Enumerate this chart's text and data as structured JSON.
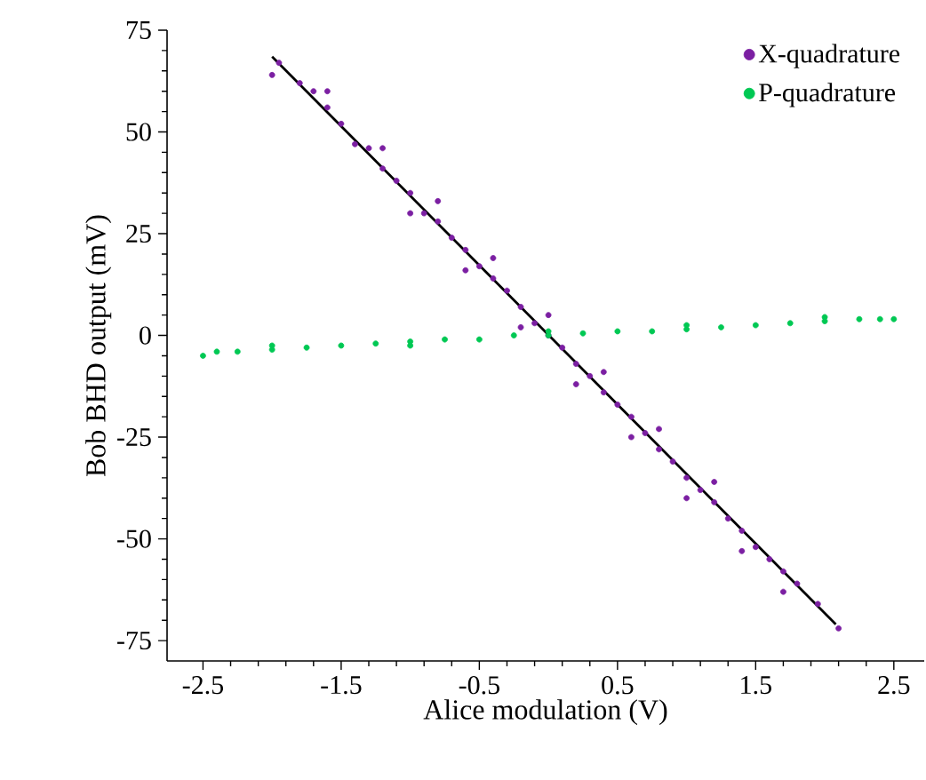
{
  "chart_data": {
    "type": "scatter",
    "xlabel": "Alice modulation (V)",
    "ylabel": "Bob BHD output (mV)",
    "xlim": [
      -2.76,
      2.72
    ],
    "ylim": [
      -80,
      75
    ],
    "xticks": [
      -2.5,
      -1.5,
      -0.5,
      0.5,
      1.5,
      2.5
    ],
    "yticks": [
      -75,
      -50,
      -25,
      0,
      25,
      50,
      75
    ],
    "legend": "top right",
    "grid": false,
    "series": [
      {
        "name": "X-quadrature",
        "marker": "circle",
        "color": "#7b1fa2",
        "x": [
          -2.0,
          -1.95,
          -1.8,
          -1.7,
          -1.6,
          -1.5,
          -1.4,
          -1.3,
          -1.2,
          -1.1,
          -1.0,
          -0.9,
          -0.8,
          -0.7,
          -0.6,
          -0.5,
          -0.4,
          -0.3,
          -0.2,
          -0.1,
          0.0,
          0.1,
          0.2,
          0.3,
          0.4,
          0.5,
          0.6,
          0.7,
          0.8,
          0.9,
          1.0,
          1.1,
          1.2,
          1.3,
          1.4,
          1.5,
          1.6,
          1.7,
          1.8,
          1.95,
          2.1,
          -1.2,
          -0.8,
          -0.4,
          0.0,
          0.4,
          0.8,
          1.2,
          -1.0,
          -0.6,
          -0.2,
          0.2,
          0.6,
          1.0,
          1.4,
          -1.6,
          1.7
        ],
        "values": [
          64,
          67,
          62,
          60,
          56,
          52,
          47,
          46,
          41,
          38,
          35,
          30,
          28,
          24,
          21,
          17,
          14,
          11,
          7,
          3,
          0,
          -3,
          -7,
          -10,
          -14,
          -17,
          -20,
          -24,
          -28,
          -31,
          -35,
          -38,
          -41,
          -45,
          -48,
          -52,
          -55,
          -58,
          -61,
          -66,
          -72,
          46,
          33,
          19,
          5,
          -9,
          -23,
          -36,
          30,
          16,
          2,
          -12,
          -25,
          -40,
          -53,
          60,
          -63
        ]
      },
      {
        "name": "P-quadrature",
        "marker": "circle",
        "color": "#00c853",
        "x": [
          -2.5,
          -2.4,
          -2.25,
          -2.0,
          -1.75,
          -1.5,
          -1.25,
          -1.0,
          -0.75,
          -0.5,
          -0.25,
          0.0,
          0.25,
          0.5,
          0.75,
          1.0,
          1.25,
          1.5,
          1.75,
          2.0,
          2.25,
          2.4,
          2.5,
          -2.0,
          -1.0,
          0.0,
          1.0,
          2.0
        ],
        "values": [
          -5,
          -4,
          -4,
          -3.5,
          -3,
          -2.5,
          -2,
          -1.5,
          -1,
          -1,
          0,
          0,
          0.5,
          1,
          1,
          1.5,
          2,
          2.5,
          3,
          3.5,
          4,
          4,
          4,
          -2.5,
          -2.5,
          1,
          2.5,
          4.5
        ]
      },
      {
        "type": "line",
        "marker": "none",
        "color": "#000000",
        "x": [
          -2.0,
          2.08
        ],
        "values": [
          68.5,
          -71
        ]
      }
    ]
  }
}
